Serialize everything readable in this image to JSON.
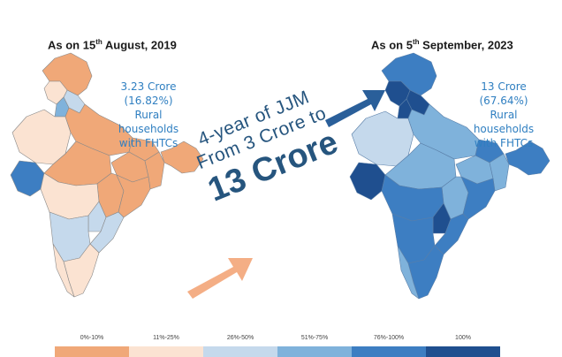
{
  "left": {
    "heading_prefix": "As on 15",
    "heading_sup": "th",
    "heading_suffix": " August, 2019",
    "stat_value": "3.23 Crore",
    "stat_percent": "(16.82%)",
    "stat_line1": "Rural households",
    "stat_line2": "with FHTCs"
  },
  "right": {
    "heading_prefix": "As on 5",
    "heading_sup": "th",
    "heading_suffix": " September, 2023",
    "stat_value": "13 Crore",
    "stat_percent": "(67.64%)",
    "stat_line1": "Rural households",
    "stat_line2": "with FHTCs"
  },
  "center": {
    "line1": "4-year of JJM",
    "line2": "From 3 Crore to",
    "line3": "13 Crore"
  },
  "colors": {
    "c0": "#f0a878",
    "c1": "#fbe3d2",
    "c2": "#c5d9ec",
    "c3": "#7fb2db",
    "c4": "#3d7ec2",
    "c5": "#1f4f8f",
    "arrow_orange": "#f2a070",
    "arrow_blue": "#2a5f9a",
    "text_blue": "#2f7fc1"
  },
  "legend": [
    {
      "label": "0%-10%",
      "color": "#f0a878"
    },
    {
      "label": "11%-25%",
      "color": "#fbe3d2"
    },
    {
      "label": "26%-50%",
      "color": "#c5d9ec"
    },
    {
      "label": "51%-75%",
      "color": "#7fb2db"
    },
    {
      "label": "76%-100%",
      "color": "#3d7ec2"
    },
    {
      "label": "100%",
      "color": "#1f4f8f"
    }
  ]
}
